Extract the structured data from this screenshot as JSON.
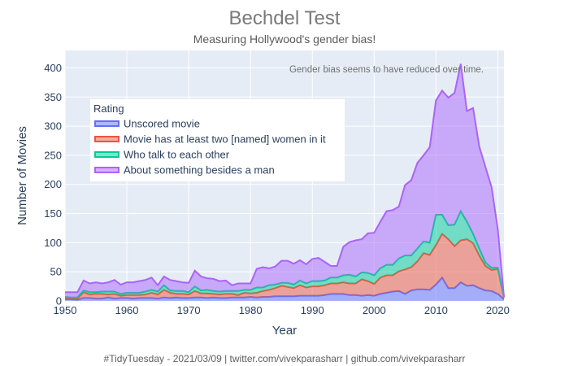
{
  "chart_data": {
    "type": "area",
    "title": "Bechdel Test",
    "subtitle": "Measuring Hollywood's gender bias!",
    "xlabel": "Year",
    "ylabel": "Number of Movies",
    "xlim": [
      1950,
      2021
    ],
    "ylim": [
      0,
      430
    ],
    "x_ticks": [
      1950,
      1960,
      1970,
      1980,
      1990,
      2000,
      2010,
      2020
    ],
    "y_ticks": [
      0,
      50,
      100,
      150,
      200,
      250,
      300,
      350,
      400
    ],
    "grid": true,
    "stacked": true,
    "legend_title": "Rating",
    "legend_placement": "upper-left inside",
    "annotation": {
      "text": "Gender bias seems to have reduced over time.",
      "x": 2002,
      "y": 392
    },
    "footer": "#TidyTuesday - 2021/03/09 | twitter.com/vivekparasharr | github.com/vivekparasharr",
    "x": [
      1950,
      1951,
      1952,
      1953,
      1954,
      1955,
      1956,
      1957,
      1958,
      1959,
      1960,
      1961,
      1962,
      1963,
      1964,
      1965,
      1966,
      1967,
      1968,
      1969,
      1970,
      1971,
      1972,
      1973,
      1974,
      1975,
      1976,
      1977,
      1978,
      1979,
      1980,
      1981,
      1982,
      1983,
      1984,
      1985,
      1986,
      1987,
      1988,
      1989,
      1990,
      1991,
      1992,
      1993,
      1994,
      1995,
      1996,
      1997,
      1998,
      1999,
      2000,
      2001,
      2002,
      2003,
      2004,
      2005,
      2006,
      2007,
      2008,
      2009,
      2010,
      2011,
      2012,
      2013,
      2014,
      2015,
      2016,
      2017,
      2018,
      2019,
      2020,
      2021
    ],
    "series": [
      {
        "name": "Unscored movie",
        "color": "#636efa",
        "values": [
          3,
          3,
          2,
          5,
          5,
          4,
          4,
          6,
          4,
          5,
          5,
          4,
          5,
          5,
          5,
          4,
          6,
          5,
          6,
          5,
          5,
          6,
          6,
          5,
          6,
          5,
          5,
          6,
          6,
          6,
          7,
          6,
          7,
          7,
          8,
          8,
          8,
          8,
          9,
          9,
          9,
          9,
          10,
          12,
          12,
          12,
          10,
          10,
          9,
          10,
          9,
          12,
          14,
          16,
          17,
          12,
          18,
          20,
          20,
          19,
          28,
          40,
          22,
          22,
          32,
          26,
          27,
          22,
          18,
          17,
          12,
          3
        ]
      },
      {
        "name": "Movie has at least two [named] women in it",
        "color": "#ef553b",
        "values": [
          2,
          2,
          2,
          10,
          6,
          8,
          8,
          5,
          8,
          4,
          5,
          6,
          5,
          6,
          9,
          7,
          13,
          9,
          6,
          7,
          6,
          11,
          7,
          8,
          6,
          6,
          7,
          6,
          4,
          8,
          6,
          8,
          10,
          12,
          14,
          18,
          16,
          14,
          18,
          14,
          16,
          16,
          17,
          18,
          18,
          20,
          20,
          20,
          28,
          24,
          20,
          28,
          30,
          28,
          34,
          42,
          40,
          48,
          62,
          60,
          68,
          75,
          84,
          72,
          72,
          80,
          72,
          56,
          42,
          36,
          43,
          3
        ]
      },
      {
        "name": "Who talk to each other",
        "color": "#00cc96",
        "values": [
          2,
          1,
          2,
          3,
          4,
          3,
          4,
          5,
          4,
          3,
          4,
          4,
          4,
          5,
          5,
          5,
          8,
          4,
          5,
          5,
          4,
          8,
          5,
          6,
          5,
          5,
          5,
          5,
          7,
          5,
          6,
          9,
          6,
          8,
          6,
          5,
          7,
          6,
          8,
          7,
          9,
          9,
          8,
          10,
          10,
          12,
          15,
          12,
          12,
          14,
          15,
          16,
          18,
          18,
          22,
          24,
          20,
          22,
          20,
          21,
          52,
          33,
          24,
          37,
          50,
          30,
          16,
          12,
          6,
          4,
          2,
          1
        ]
      },
      {
        "name": "About something besides a man",
        "color": "#ab63fa",
        "values": [
          8,
          9,
          9,
          17,
          15,
          17,
          14,
          16,
          20,
          16,
          18,
          18,
          20,
          20,
          21,
          11,
          15,
          18,
          17,
          15,
          16,
          27,
          24,
          20,
          21,
          18,
          18,
          10,
          13,
          11,
          11,
          32,
          35,
          29,
          31,
          38,
          38,
          36,
          35,
          33,
          38,
          40,
          32,
          20,
          20,
          49,
          56,
          62,
          57,
          68,
          73,
          80,
          92,
          94,
          89,
          121,
          129,
          147,
          148,
          164,
          196,
          213,
          219,
          226,
          253,
          190,
          216,
          175,
          164,
          138,
          66,
          0
        ]
      }
    ]
  }
}
